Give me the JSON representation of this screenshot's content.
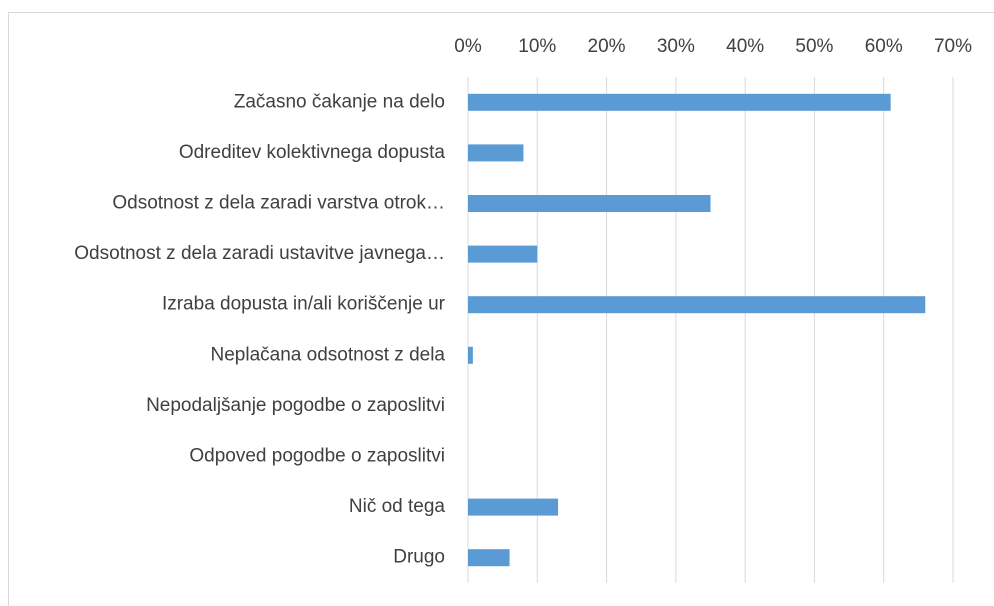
{
  "chart_data": {
    "type": "bar",
    "orientation": "horizontal",
    "categories": [
      "Začasno čakanje na delo",
      "Odreditev kolektivnega dopusta",
      "Odsotnost z dela zaradi varstva otrok…",
      "Odsotnost z dela zaradi ustavitve javnega…",
      "Izraba dopusta in/ali koriščenje ur",
      "Neplačana odsotnost z dela",
      "Nepodaljšanje pogodbe o zaposlitvi",
      "Odpoved pogodbe o zaposlitvi",
      "Nič od tega",
      "Drugo"
    ],
    "values": [
      61,
      8,
      35,
      10,
      66,
      0.7,
      0,
      0,
      13,
      6
    ],
    "color": "#5b9bd5",
    "xlim": [
      0,
      70
    ],
    "xticks": [
      {
        "value": 0,
        "label": "0%"
      },
      {
        "value": 10,
        "label": "10%"
      },
      {
        "value": 20,
        "label": "20%"
      },
      {
        "value": 30,
        "label": "30%"
      },
      {
        "value": 40,
        "label": "40%"
      },
      {
        "value": 50,
        "label": "50%"
      },
      {
        "value": 60,
        "label": "60%"
      },
      {
        "value": 70,
        "label": "70%"
      }
    ],
    "grid": true
  }
}
